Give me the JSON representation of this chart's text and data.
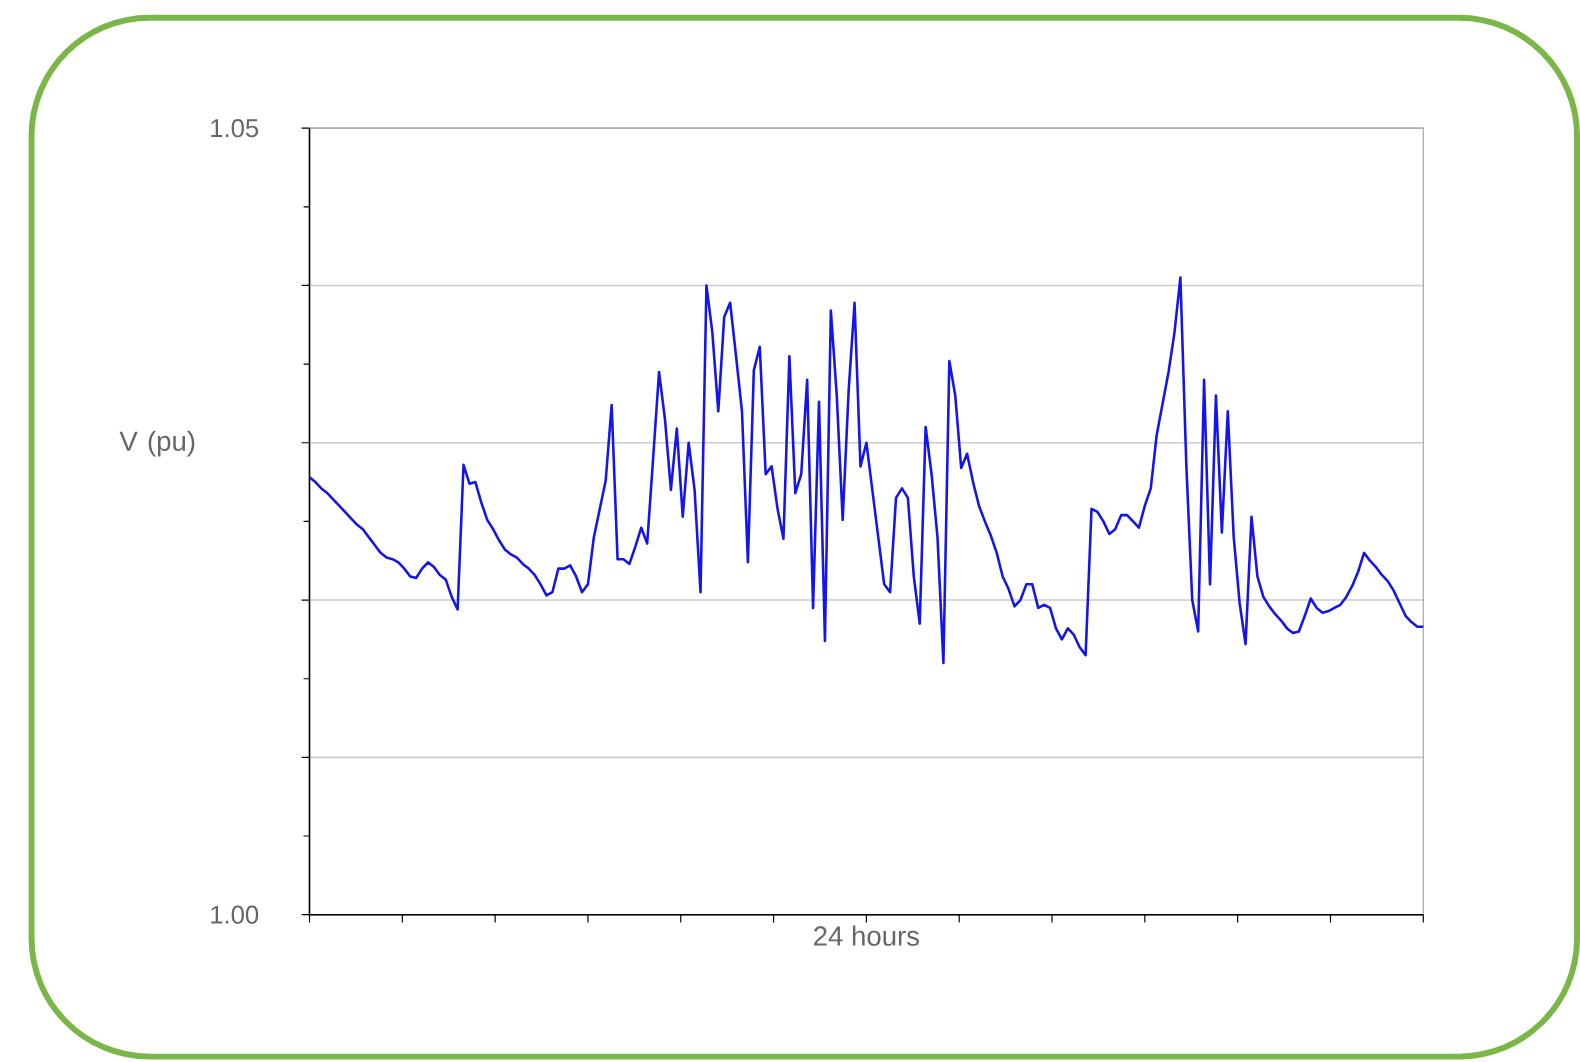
{
  "chart_data": {
    "type": "line",
    "xlabel": "24 hours",
    "ylabel": "V (pu)",
    "color": "#1414f0",
    "line_style": "solid",
    "grid": "y",
    "ylim": [
      1.0,
      1.05
    ],
    "yticks": [
      {
        "value": 1.0,
        "label": "1.00"
      },
      {
        "value": 1.01,
        "label": null
      },
      {
        "value": 1.02,
        "label": null
      },
      {
        "value": 1.03,
        "label": null
      },
      {
        "value": 1.04,
        "label": null
      },
      {
        "value": 1.05,
        "label": "1.05"
      }
    ],
    "categories": [
      null,
      null,
      null,
      null,
      null,
      null,
      null,
      null,
      null,
      null,
      null,
      null,
      null,
      null,
      null,
      null,
      null,
      null,
      null,
      null,
      null,
      null,
      null,
      null,
      null,
      null,
      null,
      null,
      null,
      null,
      null,
      null,
      null,
      null,
      null,
      null,
      null,
      null,
      null,
      null,
      null,
      null,
      null,
      null,
      null,
      null,
      null,
      null,
      null,
      null,
      null,
      null,
      null,
      null,
      null,
      null,
      null,
      null,
      null,
      null,
      null,
      null,
      null,
      null,
      null,
      null,
      null,
      null,
      null,
      null,
      null,
      null,
      null,
      null,
      null,
      null,
      null,
      null,
      null,
      null,
      null,
      null,
      null,
      null,
      null,
      null,
      null,
      null,
      null,
      null,
      null,
      null,
      null,
      null,
      null,
      null,
      null,
      null,
      null,
      null,
      null,
      null,
      null,
      null,
      null,
      null,
      null,
      null,
      null,
      null,
      null,
      null,
      null,
      null,
      null,
      null,
      null,
      null,
      null,
      null,
      null,
      null,
      null,
      null,
      null,
      null,
      null,
      null,
      null,
      null,
      null,
      null,
      null,
      null,
      null,
      null,
      null,
      null,
      null,
      null,
      null,
      null,
      null,
      null,
      null,
      null,
      null,
      null,
      null,
      null,
      null,
      null,
      null,
      null,
      null,
      null,
      null,
      null,
      null,
      null,
      null,
      null,
      null,
      null,
      null,
      null,
      null,
      null,
      null,
      null,
      null,
      null,
      null,
      null,
      null,
      null,
      null,
      null,
      null,
      null,
      null,
      null,
      null,
      null,
      null,
      null,
      null,
      null,
      null
    ],
    "values": [
      1.0278,
      1.0275,
      1.0271,
      1.0268,
      1.0264,
      1.026,
      1.0256,
      1.0252,
      1.0248,
      1.0245,
      1.024,
      1.0235,
      1.023,
      1.0227,
      1.0226,
      1.0224,
      1.022,
      1.0215,
      1.0214,
      1.022,
      1.0224,
      1.0221,
      1.0216,
      1.0213,
      1.0202,
      1.0194,
      1.0286,
      1.0274,
      1.0275,
      1.0262,
      1.0251,
      1.0245,
      1.0238,
      1.0232,
      1.0229,
      1.0227,
      1.0223,
      1.022,
      1.0216,
      1.021,
      1.0203,
      1.0205,
      1.022,
      1.022,
      1.0222,
      1.0215,
      1.0205,
      1.021,
      1.024,
      1.0258,
      1.0276,
      1.0324,
      1.0226,
      1.0226,
      1.0223,
      1.0234,
      1.0246,
      1.0236,
      1.029,
      1.0345,
      1.0315,
      1.027,
      1.0309,
      1.0253,
      1.03,
      1.027,
      1.0205,
      1.04,
      1.037,
      1.032,
      1.038,
      1.0389,
      1.0355,
      1.032,
      1.0224,
      1.0346,
      1.0361,
      1.028,
      1.0285,
      1.0258,
      1.0239,
      1.0355,
      1.0268,
      1.028,
      1.034,
      1.0195,
      1.0326,
      1.0174,
      1.0384,
      1.033,
      1.0251,
      1.0333,
      1.0389,
      1.0285,
      1.03,
      1.027,
      1.024,
      1.021,
      1.0205,
      1.0265,
      1.0271,
      1.0265,
      1.0215,
      1.0185,
      1.031,
      1.028,
      1.024,
      1.016,
      1.0352,
      1.033,
      1.0284,
      1.0293,
      1.0275,
      1.026,
      1.025,
      1.0241,
      1.023,
      1.0215,
      1.0207,
      1.0196,
      1.02,
      1.021,
      1.021,
      1.0195,
      1.0197,
      1.0195,
      1.0182,
      1.0175,
      1.0182,
      1.0178,
      1.017,
      1.0165,
      1.0258,
      1.0256,
      1.025,
      1.0242,
      1.0245,
      1.0254,
      1.0254,
      1.025,
      1.0246,
      1.026,
      1.0271,
      1.0305,
      1.0325,
      1.0345,
      1.037,
      1.0405,
      1.0286,
      1.02,
      1.018,
      1.034,
      1.021,
      1.033,
      1.0243,
      1.032,
      1.024,
      1.0198,
      1.0172,
      1.0253,
      1.0215,
      1.0202,
      1.0196,
      1.0191,
      1.0187,
      1.0182,
      1.0179,
      1.018,
      1.019,
      1.0201,
      1.0195,
      1.0192,
      1.0193,
      1.0195,
      1.0197,
      1.0202,
      1.0209,
      1.0218,
      1.023,
      1.0225,
      1.0221,
      1.0216,
      1.0212,
      1.0206,
      1.0198,
      1.019,
      1.0186,
      1.0183,
      1.0183
    ]
  }
}
